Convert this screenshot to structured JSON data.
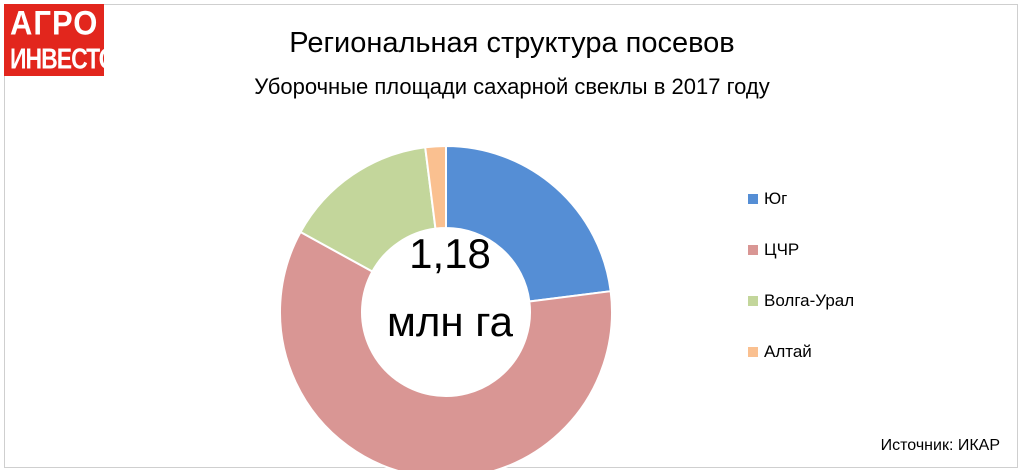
{
  "logo": {
    "line1": "АГРО",
    "line2": "ИНВЕСТОР"
  },
  "title": "Региональная структура посевов",
  "subtitle": "Уборочные площади сахарной свеклы в 2017 году",
  "center": {
    "value": "1,18",
    "unit": "млн га"
  },
  "source": "Источник: ИКАР",
  "chart_data": {
    "type": "pie",
    "donut": true,
    "title": "Региональная структура посевов",
    "subtitle": "Уборочные площади сахарной свеклы в 2017 году",
    "legend_position": "right",
    "categories": [
      "Юг",
      "ЦЧР",
      "Волга-Урал",
      "Алтай"
    ],
    "values": [
      23,
      60,
      15,
      2
    ],
    "colors": [
      "#558ed5",
      "#d99694",
      "#c3d69b",
      "#fac090"
    ]
  }
}
